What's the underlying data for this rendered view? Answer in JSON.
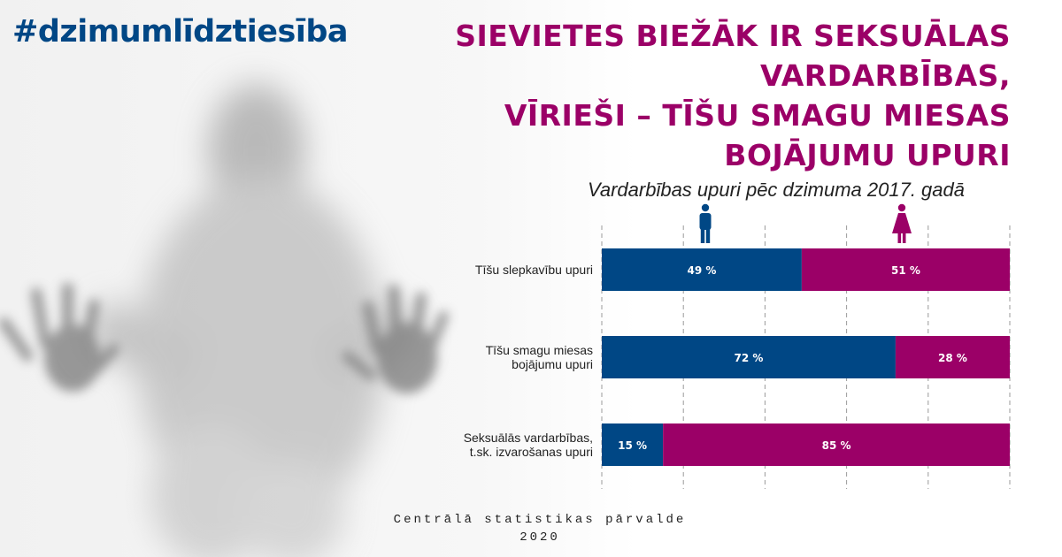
{
  "hashtag": "#dzimumlīdztiesība",
  "headline": {
    "lines": [
      "Sievietes biežāk ir seksuālas",
      "vardarbības,",
      "vīrieši – tīšu smagu miesas",
      "bojājumu upuri"
    ]
  },
  "footer": {
    "line1": "Centrālā statistikas pārvalde",
    "line2": "2020"
  },
  "icons": {
    "male": "male-icon",
    "female": "female-icon"
  },
  "colors": {
    "male": "#004785",
    "female": "#9b0067"
  },
  "chart_data": {
    "type": "bar",
    "orientation": "horizontal",
    "stacked": true,
    "title": "Vardarbības upuri pēc dzimuma 2017. gadā",
    "categories": [
      "Tīšu slepkavību upuri",
      "Tīšu smagu miesas bojājumu upuri",
      "Seksuālās vardarbības, t.sk. izvarošanas upuri"
    ],
    "category_lines": [
      [
        "Tīšu slepkavību upuri"
      ],
      [
        "Tīšu smagu miesas",
        "bojājumu upuri"
      ],
      [
        "Seksuālās vardarbības,",
        "t.sk. izvarošanas upuri"
      ]
    ],
    "series": [
      {
        "name": "Vīrieši",
        "color": "#004785",
        "values": [
          49,
          72,
          15
        ],
        "labels": [
          "49 %",
          "72 %",
          "15 %"
        ]
      },
      {
        "name": "Sievietes",
        "color": "#9b0067",
        "values": [
          51,
          28,
          85
        ],
        "labels": [
          "51 %",
          "28 %",
          "85 %"
        ]
      }
    ],
    "xlim": [
      0,
      100
    ],
    "grid": true,
    "legend": "icons-top"
  }
}
